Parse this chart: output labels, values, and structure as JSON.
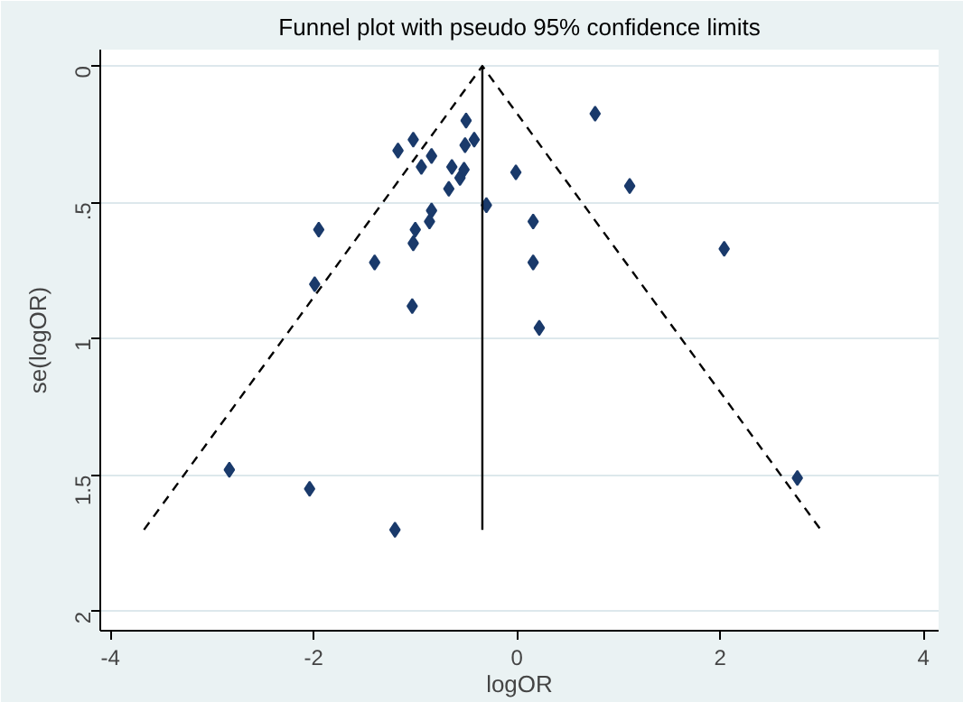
{
  "chart_data": {
    "type": "scatter",
    "title": "Funnel plot with pseudo 95% confidence limits",
    "xlabel": "logOR",
    "ylabel": "se(logOR)",
    "xlim": [
      -4.1,
      4.15
    ],
    "ylim": [
      2.07,
      -0.06
    ],
    "xticks": [
      -4,
      -2,
      0,
      2,
      4
    ],
    "yticks": [
      0,
      {
        "value": 0.5,
        "label": ".5"
      },
      1,
      1.5,
      2
    ],
    "grid": "y",
    "marker": "diamond",
    "series": [
      {
        "color": "#1a3a6b",
        "x": [
          0.77,
          -0.5,
          -1.02,
          -1.17,
          -0.84,
          -0.51,
          -0.42,
          -0.94,
          -0.64,
          -0.52,
          -0.56,
          -0.67,
          -0.01,
          1.11,
          -0.3,
          -0.84,
          -0.86,
          -1.95,
          -1.0,
          -1.02,
          0.16,
          2.04,
          -1.4,
          0.16,
          -1.99,
          -1.03,
          0.22,
          -2.83,
          -2.04,
          -1.2,
          2.76
        ],
        "values": [
          0.175,
          0.2,
          0.27,
          0.31,
          0.33,
          0.29,
          0.27,
          0.37,
          0.37,
          0.38,
          0.41,
          0.45,
          0.39,
          0.44,
          0.51,
          0.53,
          0.57,
          0.6,
          0.6,
          0.65,
          0.57,
          0.67,
          0.72,
          0.72,
          0.8,
          0.88,
          0.96,
          1.48,
          1.55,
          1.7,
          1.51
        ]
      },
      {
        "type": "line",
        "color": "#000000",
        "x": [
          -0.34,
          -0.34
        ],
        "values": [
          0,
          1.7
        ],
        "line_style": "solid",
        "marker": "none"
      },
      {
        "type": "line",
        "color": "#000000",
        "x": [
          -3.67,
          -0.34,
          2.99
        ],
        "values": [
          1.7,
          0,
          1.7
        ],
        "line_style": "dashed",
        "marker": "none"
      }
    ]
  }
}
